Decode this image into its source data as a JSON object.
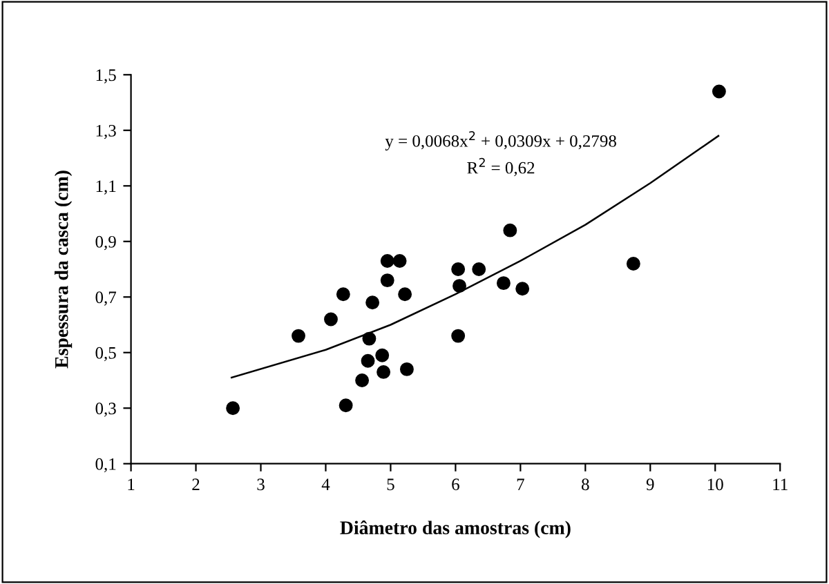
{
  "chart_data": {
    "type": "scatter",
    "xlabel": "Diâmetro das amostras (cm)",
    "ylabel": "Espessura da casca (cm)",
    "xlim": [
      1,
      11
    ],
    "xticks": [
      1,
      2,
      3,
      4,
      5,
      6,
      7,
      8,
      9,
      10,
      11
    ],
    "ylim": [
      0.1,
      1.5
    ],
    "yticks": [
      {
        "value": 0.1,
        "label": "0,1"
      },
      {
        "value": 0.3,
        "label": "0,3"
      },
      {
        "value": 0.5,
        "label": "0,5"
      },
      {
        "value": 0.7,
        "label": "0,7"
      },
      {
        "value": 0.9,
        "label": "0,9"
      },
      {
        "value": 1.1,
        "label": "1,1"
      },
      {
        "value": 1.3,
        "label": "1,3"
      },
      {
        "value": 1.5,
        "label": "1,5"
      }
    ],
    "grid": false,
    "legend": false,
    "series": [
      {
        "color": "#000000",
        "marker": "circle",
        "x": [
          2.57,
          3.58,
          4.08,
          4.27,
          4.31,
          4.56,
          4.65,
          4.67,
          4.72,
          4.87,
          4.89,
          4.95,
          4.95,
          5.14,
          5.22,
          5.25,
          6.04,
          6.06,
          6.04,
          6.36,
          6.74,
          6.84,
          7.03,
          8.74,
          10.06
        ],
        "values": [
          0.3,
          0.56,
          0.62,
          0.71,
          0.31,
          0.4,
          0.47,
          0.55,
          0.68,
          0.49,
          0.43,
          0.83,
          0.76,
          0.83,
          0.71,
          0.44,
          0.8,
          0.74,
          0.56,
          0.8,
          0.75,
          0.94,
          0.73,
          0.82,
          1.44
        ]
      },
      {
        "type": "line",
        "color": "#000000",
        "marker": "none",
        "line_style": "solid",
        "x": [
          2.55,
          4,
          5,
          6,
          7,
          8,
          9,
          10.05
        ],
        "values": [
          0.41,
          0.51,
          0.6,
          0.71,
          0.83,
          0.96,
          1.11,
          1.28
        ]
      }
    ],
    "annotations": [
      "y = 0,0068x$^{2}$ + 0,0309x + 0,2798",
      "R$^{2}$ = 0,62"
    ]
  }
}
